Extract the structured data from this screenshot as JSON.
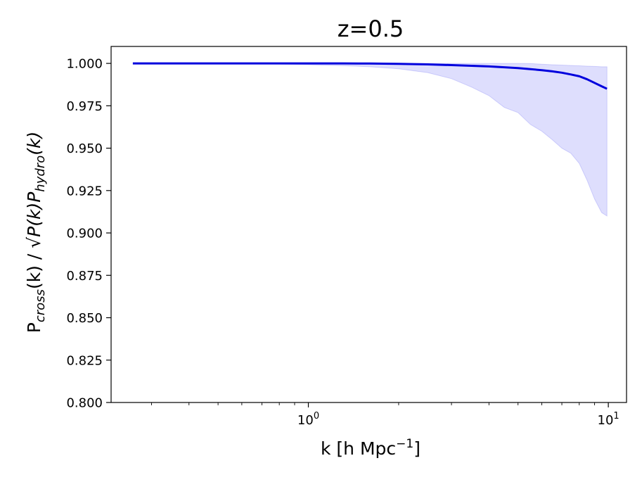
{
  "chart_data": {
    "type": "line",
    "title": "z=0.5",
    "xlabel_main": "k [h Mpc",
    "xlabel_sup": "−1",
    "xlabel_tail": "]",
    "ylabel_pre": "P",
    "ylabel_sub1": "cross",
    "ylabel_mid": "(k) / √",
    "ylabel_rad1": "P(k)P",
    "ylabel_sub2": "hydro",
    "ylabel_rad2": "(k)",
    "xscale": "log",
    "xlim": [
      0.22,
      11.5
    ],
    "ylim": [
      0.8,
      1.01
    ],
    "x_ticks": [
      {
        "value": 1,
        "base": "10",
        "exp": "0"
      },
      {
        "value": 10,
        "base": "10",
        "exp": "1"
      }
    ],
    "y_ticks": [
      {
        "value": 0.8,
        "label": "0.800"
      },
      {
        "value": 0.825,
        "label": "0.825"
      },
      {
        "value": 0.85,
        "label": "0.850"
      },
      {
        "value": 0.875,
        "label": "0.875"
      },
      {
        "value": 0.9,
        "label": "0.900"
      },
      {
        "value": 0.925,
        "label": "0.925"
      },
      {
        "value": 0.95,
        "label": "0.950"
      },
      {
        "value": 0.975,
        "label": "0.975"
      },
      {
        "value": 1.0,
        "label": "1.000"
      }
    ],
    "series": [
      {
        "color": "#0000dd",
        "x": [
          0.26,
          0.4,
          0.6,
          0.8,
          1.0,
          1.3,
          1.6,
          2.0,
          2.5,
          3.0,
          3.5,
          4.0,
          4.5,
          5.0,
          5.5,
          6.0,
          6.5,
          7.0,
          7.5,
          8.0,
          8.5,
          9.0,
          9.5,
          9.9
        ],
        "y": [
          1.0,
          1.0,
          1.0,
          1.0,
          1.0,
          1.0,
          0.9999,
          0.9997,
          0.9994,
          0.999,
          0.9986,
          0.9982,
          0.9977,
          0.9972,
          0.9966,
          0.996,
          0.9953,
          0.9945,
          0.9935,
          0.9924,
          0.9906,
          0.9885,
          0.9865,
          0.985
        ]
      }
    ],
    "band": {
      "color": "#0000ee",
      "x": [
        0.26,
        0.4,
        0.6,
        0.8,
        1.0,
        1.3,
        1.6,
        2.0,
        2.5,
        3.0,
        3.5,
        4.0,
        4.5,
        5.0,
        5.5,
        6.0,
        6.5,
        7.0,
        7.5,
        8.0,
        8.5,
        9.0,
        9.5,
        9.9
      ],
      "lower": [
        1.0,
        1.0,
        0.9998,
        0.9996,
        0.9992,
        0.9987,
        0.998,
        0.9968,
        0.9945,
        0.991,
        0.986,
        0.981,
        0.974,
        0.971,
        0.964,
        0.96,
        0.955,
        0.95,
        0.947,
        0.941,
        0.931,
        0.92,
        0.912,
        0.91
      ],
      "upper": [
        1.0,
        1.0,
        1.0,
        1.0,
        1.0,
        1.0,
        1.0,
        1.0,
        1.0,
        1.0,
        1.0,
        1.0,
        1.0,
        1.0,
        0.9999,
        0.9995,
        0.9992,
        0.999,
        0.9988,
        0.9986,
        0.9984,
        0.9982,
        0.998,
        0.998
      ]
    }
  }
}
